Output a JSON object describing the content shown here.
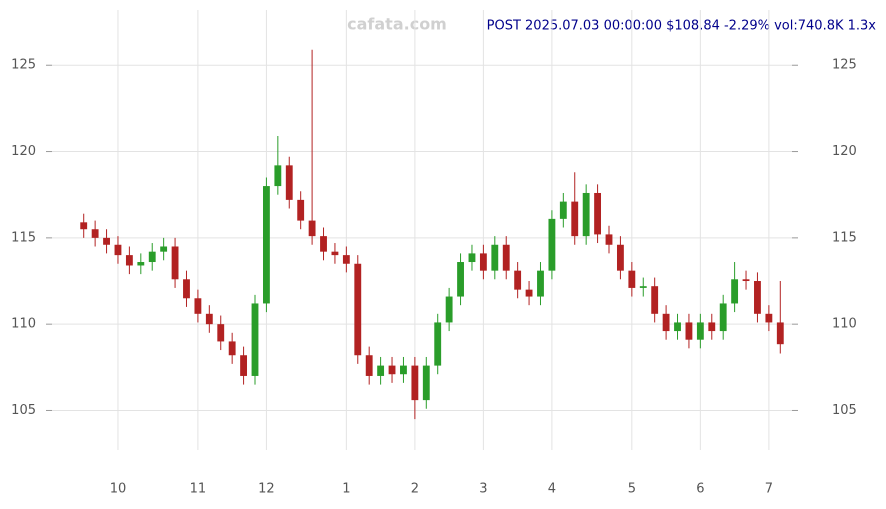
{
  "chart_data": {
    "type": "candlestick",
    "title": "POST 2025.07.03 00:00:00 $108.84 -2.29% vol:740.8K 1.3x",
    "watermark": "cafata.com",
    "categories": [
      null,
      null,
      null,
      "10",
      null,
      null,
      null,
      null,
      null,
      null,
      "11",
      null,
      null,
      null,
      null,
      null,
      "12",
      null,
      null,
      null,
      null,
      null,
      null,
      "1",
      null,
      null,
      null,
      null,
      null,
      "2",
      null,
      null,
      null,
      null,
      null,
      "3",
      null,
      null,
      null,
      null,
      null,
      "4",
      null,
      null,
      null,
      null,
      null,
      null,
      "5",
      null,
      null,
      null,
      null,
      null,
      "6",
      null,
      null,
      null,
      null,
      null,
      "7",
      null
    ],
    "open": [
      115.9,
      115.5,
      115.0,
      114.6,
      114.0,
      113.4,
      113.6,
      114.2,
      114.5,
      112.6,
      111.5,
      110.6,
      110.0,
      109.0,
      108.2,
      107.0,
      111.2,
      118.0,
      119.2,
      117.2,
      116.0,
      115.1,
      114.2,
      114.0,
      113.5,
      108.2,
      107.0,
      107.6,
      107.1,
      107.6,
      105.6,
      107.6,
      110.1,
      111.6,
      113.6,
      114.1,
      113.1,
      114.6,
      113.1,
      112.0,
      111.6,
      113.1,
      116.1,
      117.1,
      115.1,
      117.6,
      115.2,
      114.6,
      113.1,
      112.1,
      112.2,
      110.6,
      109.6,
      110.1,
      109.1,
      110.1,
      109.6,
      111.2,
      112.6,
      112.5,
      110.6,
      110.1
    ],
    "high": [
      116.4,
      116.0,
      115.5,
      115.1,
      114.5,
      114.1,
      114.7,
      115.0,
      115.0,
      113.1,
      112.0,
      111.1,
      110.5,
      109.5,
      108.7,
      111.7,
      118.5,
      120.9,
      119.7,
      117.7,
      125.9,
      115.6,
      114.7,
      114.5,
      114.0,
      108.7,
      108.1,
      108.1,
      108.1,
      108.1,
      108.1,
      110.6,
      112.1,
      114.1,
      114.6,
      114.6,
      115.1,
      115.1,
      113.6,
      112.5,
      113.6,
      116.6,
      117.6,
      118.8,
      118.1,
      118.1,
      115.7,
      115.1,
      113.6,
      112.7,
      112.7,
      111.1,
      110.6,
      110.6,
      110.6,
      110.6,
      111.7,
      113.6,
      113.1,
      113.0,
      111.1,
      112.5
    ],
    "low": [
      115.0,
      114.5,
      114.1,
      113.5,
      112.9,
      112.9,
      113.1,
      113.7,
      112.1,
      111.0,
      110.1,
      109.5,
      108.5,
      107.7,
      106.5,
      106.5,
      110.7,
      117.5,
      116.7,
      115.5,
      114.6,
      113.7,
      113.5,
      113.0,
      107.7,
      106.5,
      106.5,
      106.6,
      106.6,
      104.5,
      105.1,
      107.1,
      109.6,
      111.1,
      113.1,
      112.6,
      112.6,
      112.6,
      111.5,
      111.1,
      111.1,
      112.6,
      115.6,
      114.6,
      114.6,
      114.7,
      114.1,
      112.6,
      111.6,
      111.6,
      110.1,
      109.1,
      109.1,
      108.6,
      108.6,
      109.1,
      109.1,
      110.7,
      112.0,
      110.1,
      109.6,
      108.3
    ],
    "close": [
      115.5,
      115.0,
      114.6,
      114.0,
      113.4,
      113.6,
      114.2,
      114.5,
      112.6,
      111.5,
      110.6,
      110.0,
      109.0,
      108.2,
      107.0,
      111.2,
      118.0,
      119.2,
      117.2,
      116.0,
      115.1,
      114.2,
      114.0,
      113.5,
      108.2,
      107.0,
      107.6,
      107.1,
      107.6,
      105.6,
      107.6,
      110.1,
      111.6,
      113.6,
      114.1,
      113.1,
      114.6,
      113.1,
      112.0,
      111.6,
      113.1,
      116.1,
      117.1,
      115.1,
      117.6,
      115.2,
      114.6,
      113.1,
      112.1,
      112.2,
      110.6,
      109.6,
      110.1,
      109.1,
      110.1,
      109.6,
      111.2,
      112.6,
      112.5,
      110.6,
      110.1,
      108.84
    ],
    "up_color": "#2a9d2a",
    "down_color": "#b22222",
    "ylim": [
      103,
      128.2
    ],
    "yticks": [
      105,
      110,
      115,
      120,
      125
    ],
    "grid": true
  }
}
